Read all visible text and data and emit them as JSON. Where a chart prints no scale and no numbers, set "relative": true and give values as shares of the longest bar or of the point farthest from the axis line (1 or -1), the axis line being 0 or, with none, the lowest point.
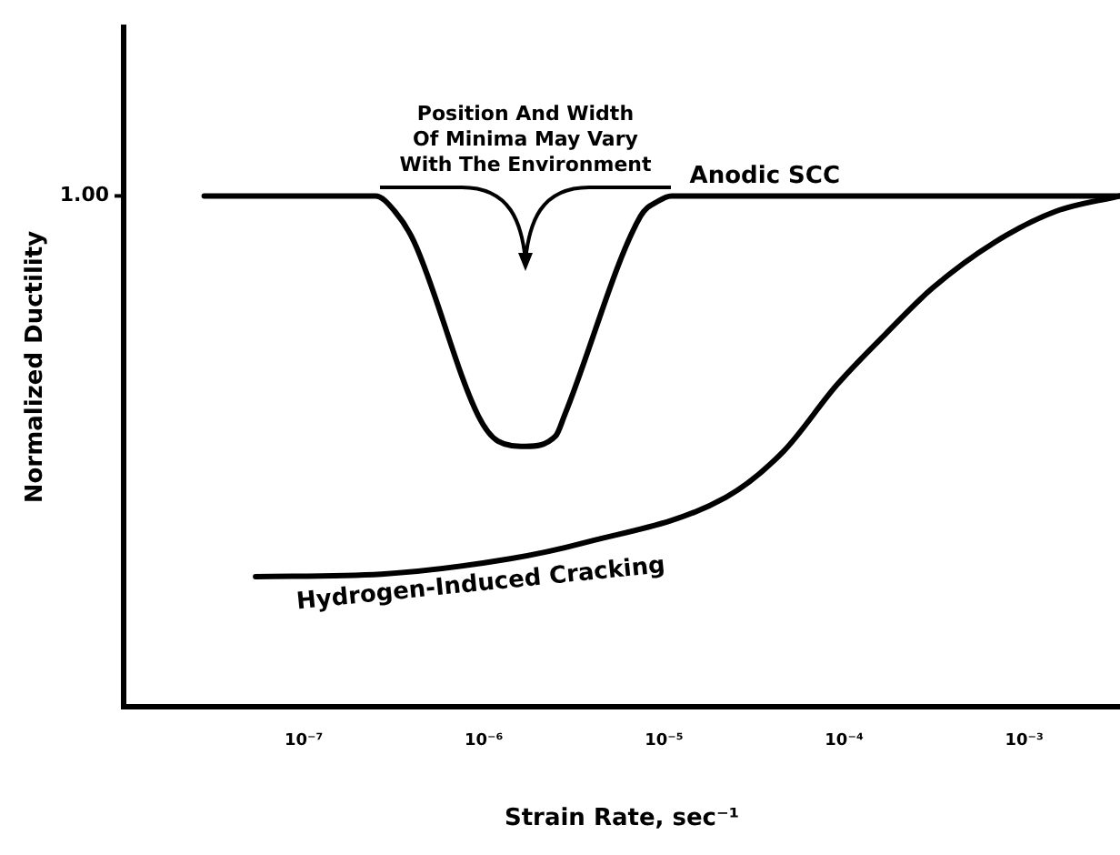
{
  "chart_data": {
    "type": "line",
    "xlabel": "Strain Rate, sec⁻¹",
    "ylabel": "Normalized Ductility",
    "log": "x",
    "relative": true,
    "grid": false,
    "legend": false,
    "marker": "none",
    "line_style": "solid",
    "xlim": [
      1e-08,
      0.0034
    ],
    "xticks": [
      {
        "value": 1e-07,
        "label": "10⁻⁷"
      },
      {
        "value": 1e-06,
        "label": "10⁻⁶"
      },
      {
        "value": 1e-05,
        "label": "10⁻⁵"
      },
      {
        "value": 0.0001,
        "label": "10⁻⁴"
      },
      {
        "value": 0.001,
        "label": "10⁻³"
      }
    ],
    "series": [
      {
        "name": "Anodic SCC",
        "color": "#000000",
        "x": [
          2.8e-08,
          2.5e-07,
          3.2e-07,
          4.1e-07,
          9.3e-07,
          1.2e-06,
          1.7e-06,
          2.5e-06,
          2.8e-06,
          7.4e-06,
          9.3e-06,
          1.1e-05,
          0.0034
        ],
        "values": [
          1.0,
          1.0,
          0.97,
          0.91,
          0.57,
          0.52,
          0.51,
          0.53,
          0.57,
          0.96,
          0.99,
          1.0,
          1.0
        ]
      },
      {
        "name": "Hydrogen-Induced Cracking",
        "color": "#000000",
        "x": [
          5.4e-08,
          2.7e-07,
          1.4e-06,
          3.5e-06,
          2.2e-05,
          4.6e-05,
          9.1e-05,
          0.00017,
          0.00031,
          0.00069,
          0.0015,
          0.0034
        ],
        "values": [
          0.255,
          0.26,
          0.29,
          0.32,
          0.41,
          0.5,
          0.63,
          0.73,
          0.82,
          0.91,
          0.97,
          1.0
        ]
      }
    ],
    "annotations": [
      "1.00",
      "Position And Width\nOf Minima May Vary\nWith The Environment"
    ]
  }
}
